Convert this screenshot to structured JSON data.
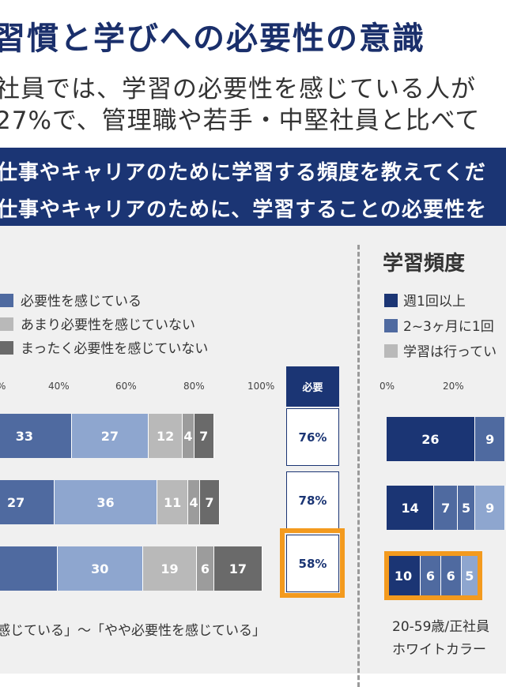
{
  "page": {
    "title": "習慣と学びへの必要性の意識",
    "subtitle_line1": "社員では、学習の必要性を感じている人が",
    "subtitle_line2": "27%で、管理職や若手・中堅社員と比べて",
    "banner_line1": "仕事やキャリアのために学習する頻度を教えてくだ",
    "banner_line2": "仕事やキャリアのために、学習することの必要性を",
    "left_footnote": "感じている」〜「やや必要性を感じている」",
    "right_footnote_line1": "20-59歳/正社員",
    "right_footnote_line2": "ホワイトカラー"
  },
  "colors": {
    "navy": "#1b3574",
    "blue_mid": "#4f6aa0",
    "blue_light": "#8ea6cf",
    "gray_light": "#b9b9b9",
    "gray_mid": "#9c9c9c",
    "gray_dark": "#6a6a6a",
    "highlight": "#f39a1e"
  },
  "chart_data": [
    {
      "type": "bar",
      "orientation": "horizontal-stacked",
      "legend": [
        "必要性を感じている",
        "あまり必要性を感じていない",
        "まったく必要性を感じていない"
      ],
      "ticks": [
        "%",
        "40%",
        "60%",
        "80%",
        "100%"
      ],
      "need_header": "必要",
      "rows": [
        {
          "values": [
            33,
            27,
            12,
            4,
            7
          ],
          "need": "76%"
        },
        {
          "values": [
            27,
            36,
            11,
            4,
            7
          ],
          "need": "78%"
        },
        {
          "values": [
            null,
            30,
            19,
            6,
            17
          ],
          "need": "58%"
        }
      ]
    },
    {
      "type": "bar",
      "orientation": "horizontal-stacked",
      "title": "学習頻度",
      "legend": [
        "週1回以上",
        "2~3ヶ月に1回",
        "学習は行ってい"
      ],
      "ticks": [
        "0%",
        "20%"
      ],
      "rows": [
        {
          "values": [
            26,
            9
          ]
        },
        {
          "values": [
            14,
            7,
            5,
            9
          ]
        },
        {
          "values": [
            10,
            6,
            6,
            5
          ]
        }
      ]
    }
  ]
}
